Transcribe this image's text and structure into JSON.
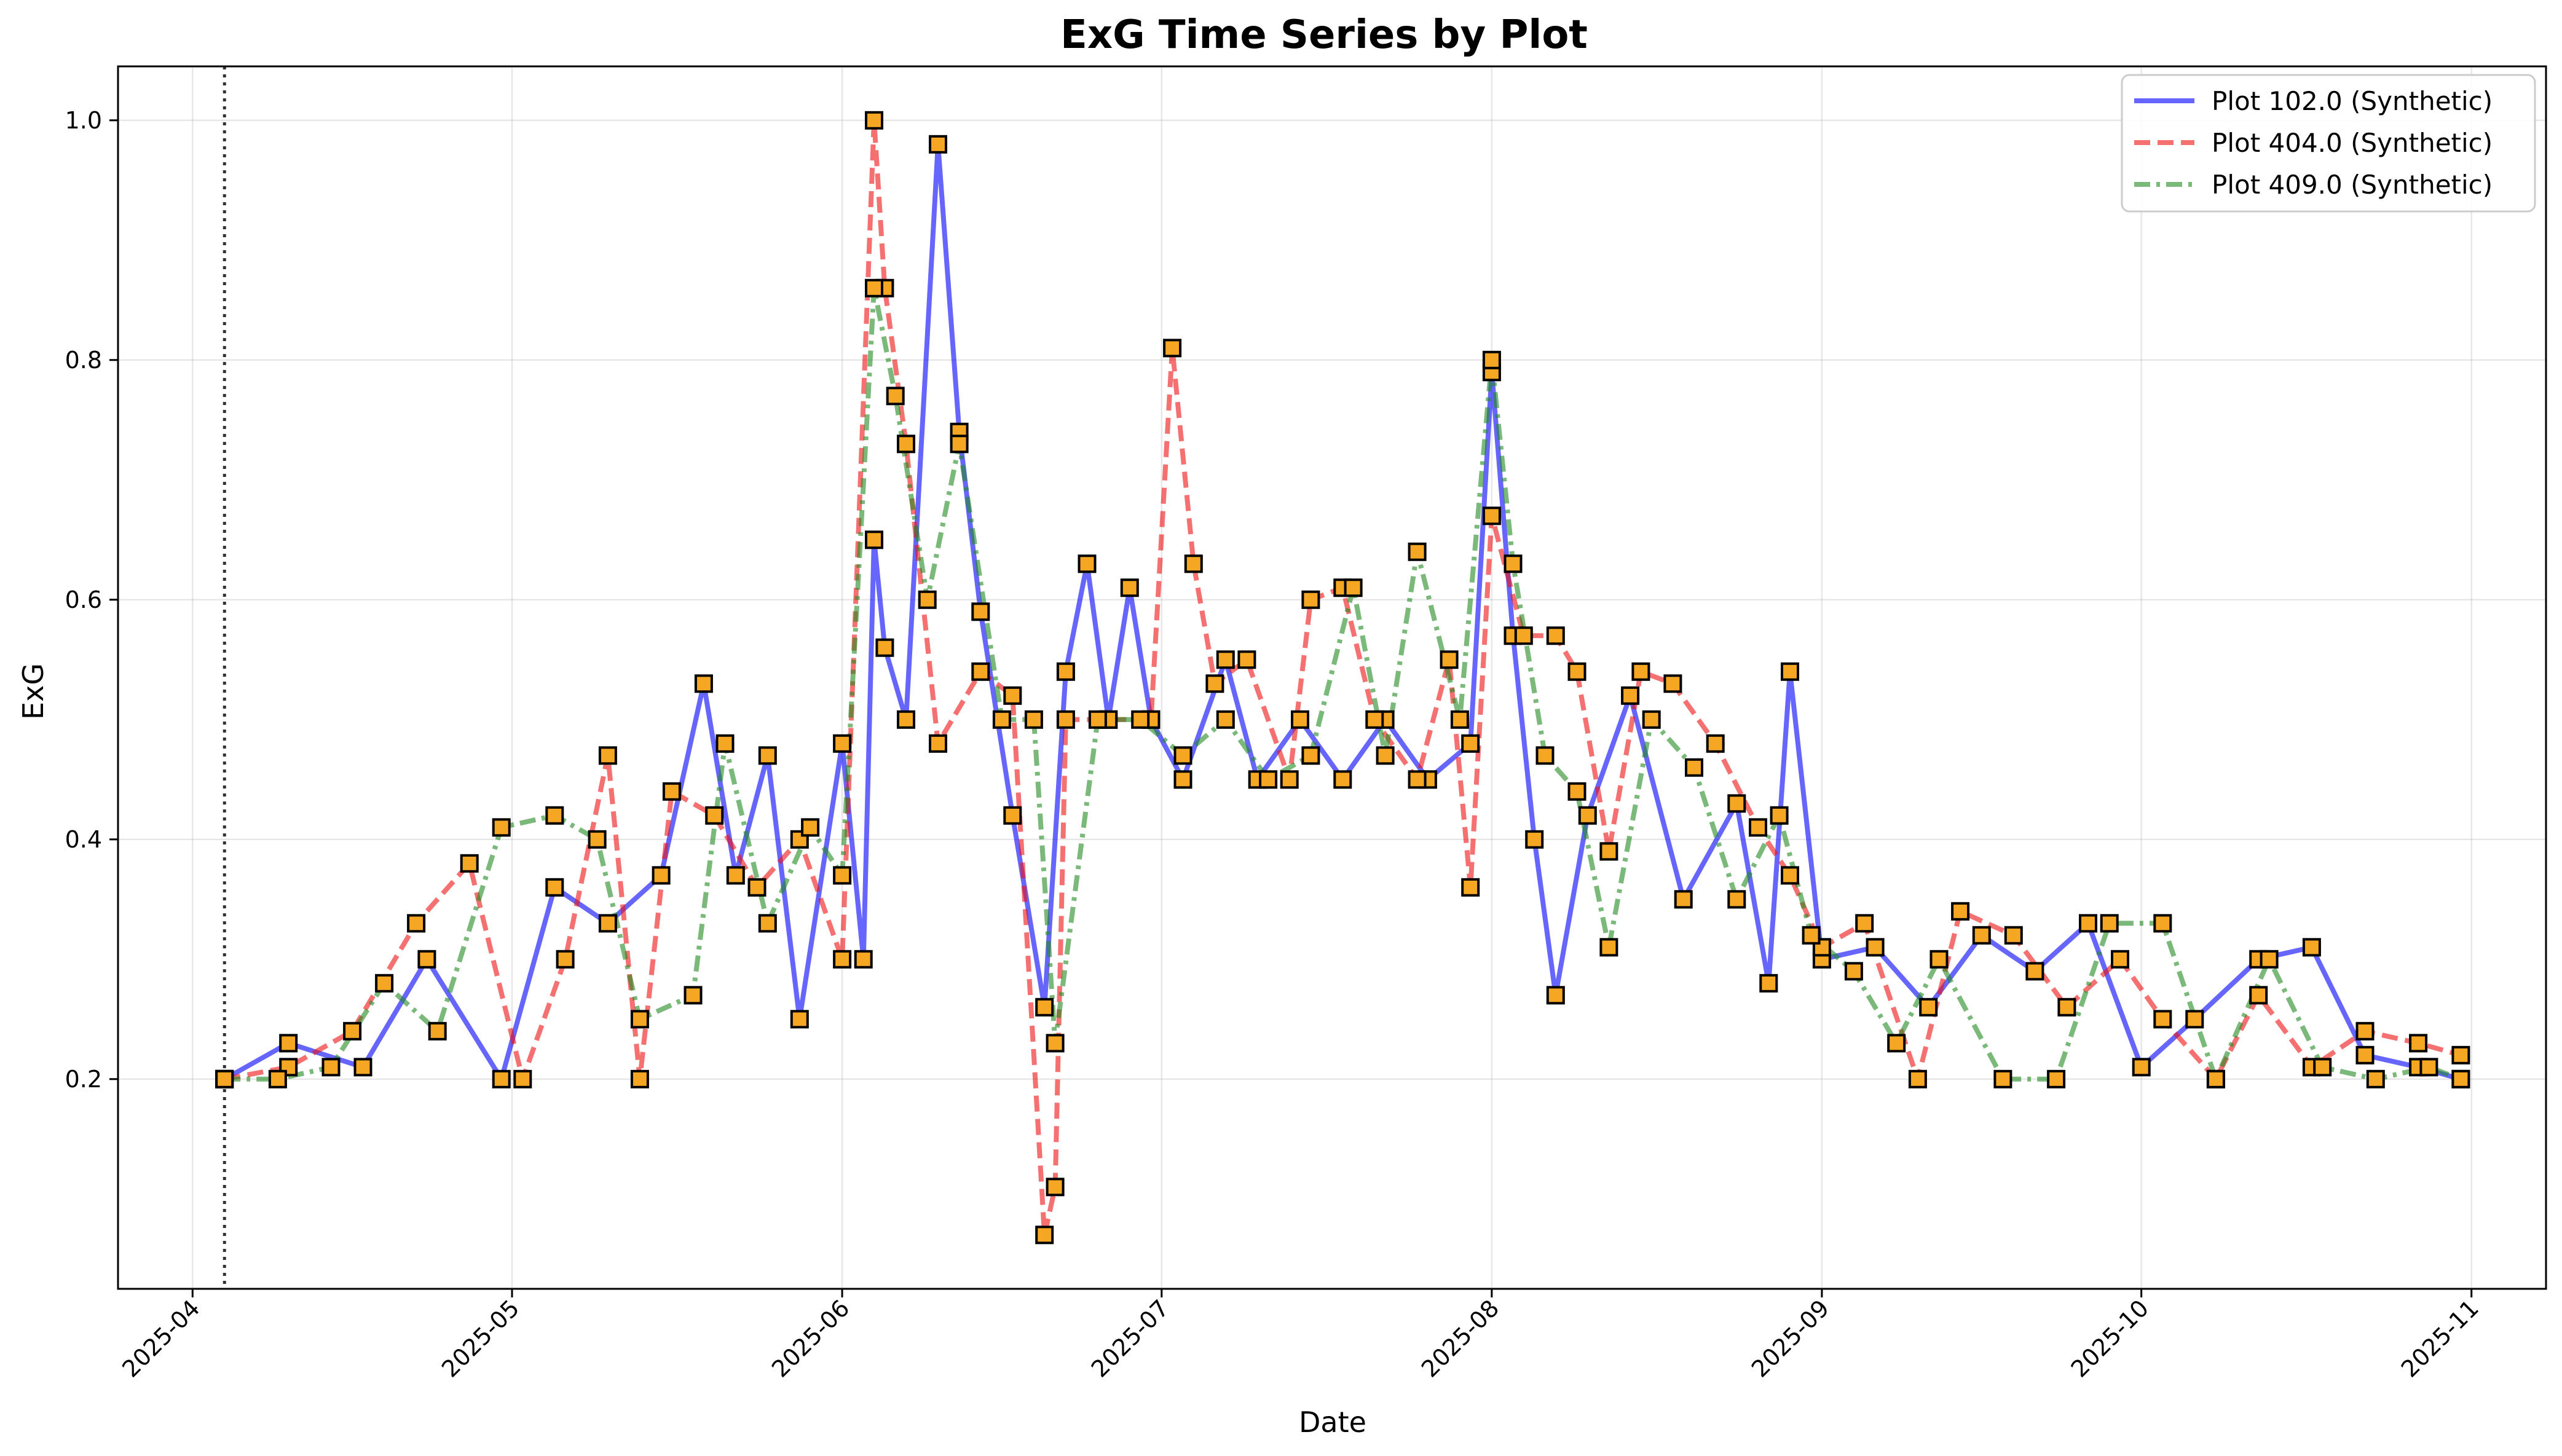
{
  "chart_data": {
    "type": "line",
    "title": "ExG Time Series by Plot",
    "xlabel": "Date",
    "ylabel": "ExG",
    "xlim": [
      "2025-03-25",
      "2025-11-08"
    ],
    "ylim": [
      0.025,
      1.045
    ],
    "grid": true,
    "legend_position": "top-right",
    "x_ticks": [
      "2025-04",
      "2025-05",
      "2025-06",
      "2025-07",
      "2025-08",
      "2025-09",
      "2025-10",
      "2025-11"
    ],
    "y_ticks": [
      "0.2",
      "0.4",
      "0.6",
      "0.8",
      "1.0"
    ],
    "reference_line": {
      "x": "2025-04-04",
      "style": "dotted",
      "color": "#333333"
    },
    "marker": {
      "shape": "square",
      "fill": "#f5a623",
      "stroke": "#000000"
    },
    "series": [
      {
        "name": "Plot 102.0 (Synthetic)",
        "color": "#0000ff",
        "dash": "solid",
        "x": [
          "2025-04-04",
          "2025-04-10",
          "2025-04-17",
          "2025-04-23",
          "2025-04-30",
          "2025-05-05",
          "2025-05-10",
          "2025-05-15",
          "2025-05-19",
          "2025-05-22",
          "2025-05-25",
          "2025-05-28",
          "2025-06-01",
          "2025-06-03",
          "2025-06-04",
          "2025-06-05",
          "2025-06-07",
          "2025-06-10",
          "2025-06-12",
          "2025-06-14",
          "2025-06-17",
          "2025-06-20",
          "2025-06-22",
          "2025-06-24",
          "2025-06-26",
          "2025-06-28",
          "2025-06-30",
          "2025-07-03",
          "2025-07-07",
          "2025-07-10",
          "2025-07-14",
          "2025-07-18",
          "2025-07-22",
          "2025-07-26",
          "2025-07-30",
          "2025-08-01",
          "2025-08-03",
          "2025-08-05",
          "2025-08-07",
          "2025-08-10",
          "2025-08-14",
          "2025-08-19",
          "2025-08-24",
          "2025-08-27",
          "2025-08-29",
          "2025-09-01",
          "2025-09-06",
          "2025-09-11",
          "2025-09-16",
          "2025-09-21",
          "2025-09-26",
          "2025-10-01",
          "2025-10-06",
          "2025-10-12",
          "2025-10-17",
          "2025-10-22",
          "2025-10-27",
          "2025-10-31"
        ],
        "values": [
          0.2,
          0.23,
          0.21,
          0.3,
          0.2,
          0.36,
          0.33,
          0.37,
          0.53,
          0.37,
          0.47,
          0.25,
          0.48,
          0.3,
          0.65,
          0.56,
          0.5,
          0.98,
          0.74,
          0.59,
          0.42,
          0.26,
          0.54,
          0.63,
          0.5,
          0.61,
          0.5,
          0.45,
          0.55,
          0.45,
          0.5,
          0.45,
          0.5,
          0.45,
          0.48,
          0.79,
          0.57,
          0.4,
          0.27,
          0.42,
          0.52,
          0.35,
          0.43,
          0.28,
          0.54,
          0.3,
          0.31,
          0.26,
          0.32,
          0.29,
          0.33,
          0.21,
          0.25,
          0.3,
          0.31,
          0.22,
          0.21,
          0.2
        ]
      },
      {
        "name": "Plot 404.0 (Synthetic)",
        "color": "#ee1111",
        "dash": "dashed",
        "x": [
          "2025-04-04",
          "2025-04-10",
          "2025-04-16",
          "2025-04-22",
          "2025-04-27",
          "2025-05-02",
          "2025-05-06",
          "2025-05-10",
          "2025-05-13",
          "2025-05-16",
          "2025-05-20",
          "2025-05-24",
          "2025-05-28",
          "2025-06-01",
          "2025-06-04",
          "2025-06-05",
          "2025-06-07",
          "2025-06-10",
          "2025-06-14",
          "2025-06-17",
          "2025-06-20",
          "2025-06-21",
          "2025-06-22",
          "2025-06-26",
          "2025-06-30",
          "2025-07-02",
          "2025-07-04",
          "2025-07-06",
          "2025-07-09",
          "2025-07-13",
          "2025-07-15",
          "2025-07-18",
          "2025-07-21",
          "2025-07-25",
          "2025-07-28",
          "2025-07-30",
          "2025-08-01",
          "2025-08-04",
          "2025-08-07",
          "2025-08-09",
          "2025-08-12",
          "2025-08-15",
          "2025-08-18",
          "2025-08-22",
          "2025-08-26",
          "2025-08-29",
          "2025-09-01",
          "2025-09-05",
          "2025-09-10",
          "2025-09-14",
          "2025-09-19",
          "2025-09-24",
          "2025-09-29",
          "2025-10-03",
          "2025-10-08",
          "2025-10-12",
          "2025-10-17",
          "2025-10-22",
          "2025-10-27",
          "2025-10-31"
        ],
        "values": [
          0.2,
          0.21,
          0.24,
          0.33,
          0.38,
          0.2,
          0.3,
          0.47,
          0.2,
          0.44,
          0.42,
          0.36,
          0.4,
          0.3,
          1.0,
          0.86,
          0.73,
          0.48,
          0.54,
          0.52,
          0.07,
          0.11,
          0.5,
          0.5,
          0.5,
          0.81,
          0.63,
          0.53,
          0.55,
          0.45,
          0.6,
          0.61,
          0.5,
          0.45,
          0.55,
          0.36,
          0.67,
          0.57,
          0.57,
          0.54,
          0.39,
          0.54,
          0.53,
          0.48,
          0.41,
          0.37,
          0.31,
          0.33,
          0.2,
          0.34,
          0.32,
          0.26,
          0.3,
          0.25,
          0.2,
          0.27,
          0.21,
          0.24,
          0.23,
          0.22
        ]
      },
      {
        "name": "Plot 409.0 (Synthetic)",
        "color": "#228b22",
        "dash": "dashdot",
        "x": [
          "2025-04-04",
          "2025-04-09",
          "2025-04-14",
          "2025-04-19",
          "2025-04-24",
          "2025-04-30",
          "2025-05-05",
          "2025-05-09",
          "2025-05-13",
          "2025-05-18",
          "2025-05-21",
          "2025-05-25",
          "2025-05-29",
          "2025-06-01",
          "2025-06-04",
          "2025-06-06",
          "2025-06-09",
          "2025-06-12",
          "2025-06-16",
          "2025-06-19",
          "2025-06-21",
          "2025-06-25",
          "2025-06-29",
          "2025-07-03",
          "2025-07-07",
          "2025-07-11",
          "2025-07-15",
          "2025-07-19",
          "2025-07-22",
          "2025-07-25",
          "2025-07-29",
          "2025-08-01",
          "2025-08-03",
          "2025-08-06",
          "2025-08-09",
          "2025-08-12",
          "2025-08-16",
          "2025-08-20",
          "2025-08-24",
          "2025-08-28",
          "2025-08-31",
          "2025-09-04",
          "2025-09-08",
          "2025-09-12",
          "2025-09-18",
          "2025-09-23",
          "2025-09-28",
          "2025-10-03",
          "2025-10-08",
          "2025-10-13",
          "2025-10-18",
          "2025-10-23",
          "2025-10-28",
          "2025-10-31"
        ],
        "values": [
          0.2,
          0.2,
          0.21,
          0.28,
          0.24,
          0.41,
          0.42,
          0.4,
          0.25,
          0.27,
          0.48,
          0.33,
          0.41,
          0.37,
          0.86,
          0.77,
          0.6,
          0.73,
          0.5,
          0.5,
          0.23,
          0.5,
          0.5,
          0.47,
          0.5,
          0.45,
          0.47,
          0.61,
          0.47,
          0.64,
          0.5,
          0.8,
          0.63,
          0.47,
          0.44,
          0.31,
          0.5,
          0.46,
          0.35,
          0.42,
          0.32,
          0.29,
          0.23,
          0.3,
          0.2,
          0.2,
          0.33,
          0.33,
          0.2,
          0.3,
          0.21,
          0.2,
          0.21,
          0.2
        ]
      }
    ]
  }
}
